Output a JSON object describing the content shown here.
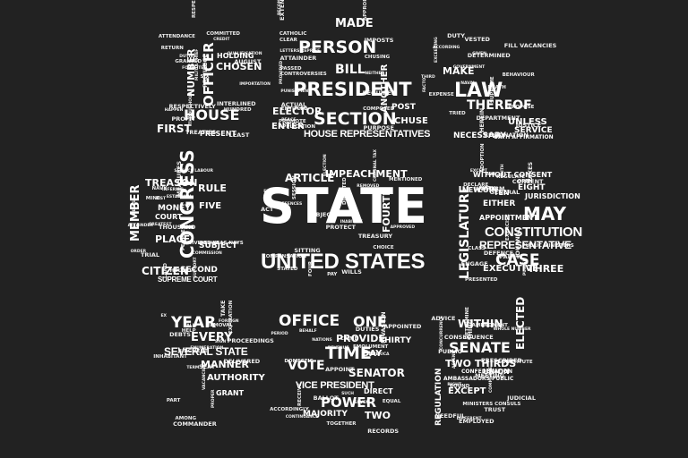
{
  "background": "#222222",
  "text_color": "#ffffff",
  "words": {
    "state": "STATE",
    "united_states": "UNITED STATES",
    "president": "PRESIDENT",
    "section": "SECTION",
    "person": "PERSON",
    "house_representatives": "HOUSE REPRESENTATIVES",
    "law": "LAW",
    "thereof": "THEREOF",
    "make": "MAKE",
    "necessary": "NECESSARY",
    "oath_affirmation": "OATH AFFIRMATION",
    "unless": "UNLESS",
    "service": "SERVICE",
    "house": "HOUSE",
    "officer": "OFFICER",
    "number": "NUMBER",
    "first": "FIRST",
    "present": "PRESENT",
    "chosen": "CHOSEN",
    "holding": "HOLDING",
    "made": "MADE",
    "bill": "BILL",
    "elector": "ELECTOR",
    "enter": "ENTER",
    "chuse": "CHUSE",
    "post": "POST",
    "another": "ANOTHER",
    "congress": "CONGRESS",
    "member": "MEMBER",
    "rule": "RULE",
    "treason": "TREASON",
    "money": "MONEY",
    "five": "FIVE",
    "place": "PLACE",
    "citizen": "CITIZEN",
    "second": "SECOND",
    "supreme_court": "SUPREME COURT",
    "court": "COURT",
    "subject": "SUBJECT",
    "article": "ARTICLE",
    "impeachment": "IMPEACHMENT",
    "fourth": "FOURTH",
    "may": "MAY",
    "constitution": "CONSTITUTION",
    "representative": "REPRESENTATIVE",
    "case": "CASE",
    "three": "THREE",
    "executive": "EXECUTIVE",
    "legislature": "LEGISLATURE",
    "jurisdiction": "JURISDICTION",
    "either": "EITHER",
    "eight": "EIGHT",
    "without_consent": "WITHOUT CONSENT",
    "appointment": "APPOINTMENT",
    "new": "NEW",
    "coin": "COIN",
    "ten": "TEN",
    "year": "YEAR",
    "every": "EVERY",
    "several_state": "SEVERAL STATE",
    "manner": "MANNER",
    "authority": "AUTHORITY",
    "grant": "GRANT",
    "office": "OFFICE",
    "one": "ONE",
    "time": "TIME",
    "provide": "PROVIDE",
    "day": "DAY",
    "thirty": "THIRTY",
    "vote": "VOTE",
    "senator": "SENATOR",
    "vice_president": "VICE PRESIDENT",
    "power": "POWER",
    "two": "TWO",
    "majority": "MAJORITY",
    "direct": "DIRECT",
    "within": "WITHIN",
    "senate": "SENATE",
    "two_thirds": "TWO THIRDS",
    "except": "EXCEPT",
    "elected": "ELECTED",
    "regulation": "REGULATION",
    "union": "UNION",
    "ambassadors_public": "AMBASSADORS PUBLIC",
    "confederation": "CONFEDERATION",
    "small": [
      "RETURN",
      "PROMOTE",
      "TRIED",
      "ESTABLISH",
      "INABILITY",
      "PUNISH",
      "EXPIRATION",
      "EMOLUMENT",
      "THING",
      "HAPPEN",
      "APPLICATION",
      "DETERMINED",
      "DIVIDED YEAS NAYS",
      "ELECTION",
      "EXERCISE",
      "TERM",
      "APPOINT",
      "WHOLE NUMBER",
      "LEAST",
      "REQUIRED",
      "GOVERNMENT",
      "PEOPLE",
      "ACT",
      "PRESENTED",
      "SEAT",
      "INVASION",
      "COMMERCE",
      "PROFIT",
      "BECOME",
      "FILL VACANCIES",
      "GREATEST",
      "SESSION",
      "EXCEPT",
      "VALID",
      "ACCORDINGLY",
      "EMPLOYED",
      "GRANTED",
      "EXTEND",
      "FACTO",
      "HOLD",
      "STATED",
      "PUBLIC MINISTERS",
      "DELIVERED",
      "RECORDS",
      "TRUST",
      "IMPORTATION",
      "COMPOSED",
      "PROPOSE",
      "LAND",
      "REMOVED",
      "ADOPTION",
      "INHABITANT",
      "RECEIVE",
      "PRESCRIBED",
      "FORFEITED",
      "CATHOLIC",
      "NAVAL",
      "ORDER",
      "MENTIONED",
      "WAR",
      "TAKE",
      "NATIONS",
      "BOUND",
      "TREATIES",
      "CLEAR",
      "HEREIN",
      "NAVY",
      "CHOICE",
      "CLASS",
      "JUDGMENT",
      "DOMESTIC",
      "MEETING",
      "ATTENDANCE",
      "PURPOSE",
      "VESTED",
      "MINE",
      "FOUR",
      "REGULATE",
      "ENUMERATION",
      "CRIME",
      "AMENDMENT",
      "RESPECTIVE",
      "LETTERS REPRISE",
      "JUSTICE",
      "SUPPORT",
      "WILLS",
      "FAITH",
      "AMONG",
      "SEVEN",
      "CONCURRENCE",
      "MILITIA CHIEF",
      "ATTAINDER",
      "EXCEEDING",
      "RECESS",
      "PROTECT",
      "DEFENCE",
      "SIGN",
      "TOGETHER",
      "DETERMINE",
      "RESPECTIVELY",
      "APPROPRIATION",
      "THIRD",
      "ATTAINDER",
      "COMPENSATION",
      "CONSENT",
      "PROCEEDINGS",
      "EQUAL",
      "MINISTERS CONSULS",
      "PRIVILEGE",
      "PASSED",
      "GIVEN",
      "MEASURES",
      "SITTING",
      "OPEN",
      "PROPER",
      "PERIOD",
      "ADVICE",
      "COMMITTED",
      "CONTROVERSIES",
      "SUPREME",
      "ENTERED",
      "OFFENCES",
      "PARTY",
      "DEBTS",
      "AMERICA",
      "DIFFERENT",
      "DUTIES",
      "IMPOSTS",
      "DEPARTMENT",
      "COMMISSION",
      "TREASURY",
      "TAXES",
      "HELP",
      "BEHALF",
      "ASSENT",
      "CREDIT",
      "PROVIDED",
      "EXPENSE",
      "THOUSAND",
      "APPROVED",
      "DECLARE",
      "PART",
      "BALLOT",
      "JUDICIAL",
      "INTERLINED",
      "PUNISHMENT",
      "DUTY",
      "TITLE",
      "CRIMINAL TAX",
      "JOURNAL",
      "REMOVAL",
      "CONTINUANCE",
      "RIGHT",
      "THROUGHOUT",
      "CHUSING",
      "ACCORDING",
      "SERVICE LABOUR",
      "OBJECTIONS",
      "UNIFORM",
      "FOREIGN",
      "SUCH",
      "CONSEQUENCE",
      "HUNDRED",
      "ACTUAL",
      "RESIGNATION",
      "TRIAL",
      "DIRECTED",
      "FIFTH",
      "VACANCIES",
      "DUTIES",
      "CONSTITUTE",
      "QUALIFICATION",
      "ENTITLED",
      "BEHAVIOUR",
      "INFERIOR",
      "PAY",
      "ENGAGE",
      "EX",
      "REVENUE",
      "PUBLIC",
      "SIX",
      "NEITHER",
      "DEATH",
      "LIST",
      "ELIGIBLE",
      "GENERAL",
      "COMMANDER",
      "APPOINTED",
      "NEEDFUL",
      "AUGUST",
      "PEACE"
    ]
  }
}
